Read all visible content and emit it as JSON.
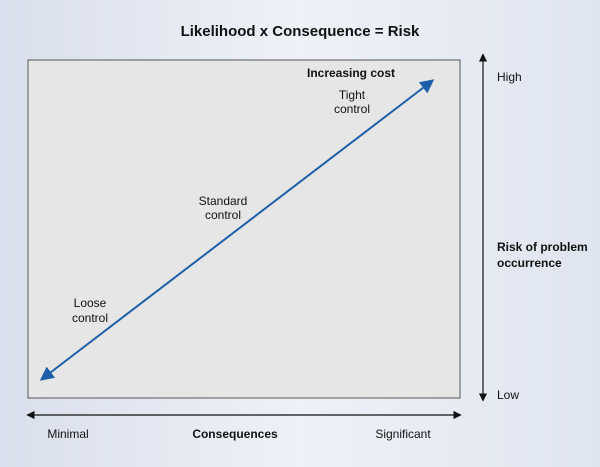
{
  "title": "Likelihood x Consequence = Risk",
  "box": {
    "top_label": "Increasing cost",
    "labels": [
      [
        "Tight",
        "control"
      ],
      [
        "Standard",
        "control"
      ],
      [
        "Loose",
        "control"
      ]
    ]
  },
  "y_axis": {
    "high": "High",
    "low": "Low",
    "title": [
      "Risk of problem",
      "occurrence"
    ]
  },
  "x_axis": {
    "left": "Minimal",
    "title": "Consequences",
    "right": "Significant"
  }
}
